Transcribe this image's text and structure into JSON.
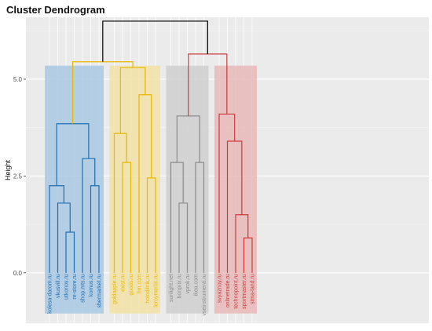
{
  "chart_data": {
    "type": "dendrogram",
    "title": "Cluster Dendrogram",
    "ylabel": "Height",
    "yticks": [
      "0.0",
      "2.5",
      "5.0"
    ],
    "ytick_values": [
      0,
      2.5,
      5.0
    ],
    "ylim": [
      -1.3,
      6.6
    ],
    "grid": true,
    "leaves": [
      "kolesa-darom.ru",
      "vkusvill.ru",
      "utkonos.ru",
      "re-store.ru",
      "shop.mts.ru",
      "komus.ru",
      "sbermarket.ru",
      "goldapple.ru",
      "exist.ru",
      "goods.ru",
      "hm.com",
      "holodilnik.ru",
      "leroymerlin.ru",
      "sunlight.net",
      "bonprix.ru",
      "vprok.ru",
      "ikea.com",
      "vseinstrumenti.ru",
      "svyaznoy.ru",
      "onlinetrade.ru",
      "technopoint.ru",
      "sportmaster.ru",
      "sima-land.ru"
    ],
    "clusters": [
      {
        "color": "#1f6fb2",
        "fill": "#a9c8e3",
        "leaves": [
          0,
          6
        ]
      },
      {
        "color": "#e6b800",
        "fill": "#f2e2a6",
        "leaves": [
          7,
          12
        ]
      },
      {
        "color": "#8c8c8c",
        "fill": "#cfcfcf",
        "leaves": [
          13,
          17
        ]
      },
      {
        "color": "#cc3a3a",
        "fill": "#e8b9b9",
        "leaves": [
          18,
          22
        ]
      }
    ],
    "merges": [
      {
        "a": "L2",
        "b": "L3",
        "height": 1.05,
        "color": "#1f6fb2"
      },
      {
        "a": "L1",
        "b": "M0",
        "height": 1.8,
        "color": "#1f6fb2"
      },
      {
        "a": "L0",
        "b": "M1",
        "height": 2.25,
        "color": "#1f6fb2"
      },
      {
        "a": "L5",
        "b": "L6",
        "height": 2.25,
        "color": "#1f6fb2"
      },
      {
        "a": "L4",
        "b": "M3",
        "height": 2.95,
        "color": "#1f6fb2"
      },
      {
        "a": "M2",
        "b": "M4",
        "height": 3.85,
        "color": "#1f6fb2"
      },
      {
        "a": "L8",
        "b": "L9",
        "height": 2.85,
        "color": "#e6b800"
      },
      {
        "a": "L7",
        "b": "M6",
        "height": 3.6,
        "color": "#e6b800"
      },
      {
        "a": "L11",
        "b": "L12",
        "height": 2.45,
        "color": "#e6b800"
      },
      {
        "a": "L10",
        "b": "M8",
        "height": 4.6,
        "color": "#e6b800"
      },
      {
        "a": "M7",
        "b": "M9",
        "height": 5.3,
        "color": "#e6b800"
      },
      {
        "a": "L14",
        "b": "L15",
        "height": 1.8,
        "color": "#8c8c8c"
      },
      {
        "a": "L13",
        "b": "M11",
        "height": 2.85,
        "color": "#8c8c8c"
      },
      {
        "a": "L16",
        "b": "L17",
        "height": 2.85,
        "color": "#8c8c8c"
      },
      {
        "a": "M12",
        "b": "M13",
        "height": 4.05,
        "color": "#8c8c8c"
      },
      {
        "a": "L21",
        "b": "L22",
        "height": 0.9,
        "color": "#cc3a3a"
      },
      {
        "a": "L20",
        "b": "M15",
        "height": 1.5,
        "color": "#cc3a3a"
      },
      {
        "a": "L19",
        "b": "M16",
        "height": 3.4,
        "color": "#cc3a3a"
      },
      {
        "a": "L18",
        "b": "M17",
        "height": 4.1,
        "color": "#cc3a3a"
      },
      {
        "a": "M5",
        "b": "M10",
        "height": 5.45,
        "color": "#e6b800"
      },
      {
        "a": "M14",
        "b": "M18",
        "height": 5.65,
        "color": "#cc3a3a"
      },
      {
        "a": "M19",
        "b": "M20",
        "height": 6.5,
        "color": "#000000"
      }
    ]
  }
}
